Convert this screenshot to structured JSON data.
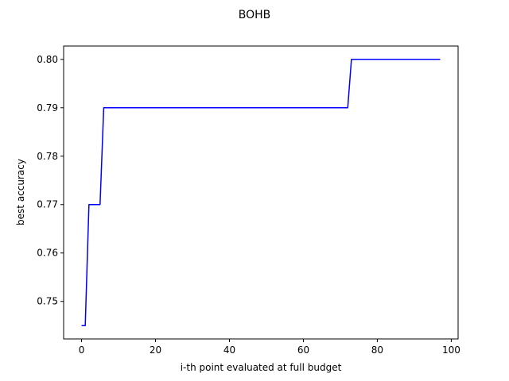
{
  "chart_data": {
    "type": "line",
    "title": "BOHB",
    "xlabel": "i-th point evaluated at full budget",
    "ylabel": "best accuracy",
    "xlim": [
      -4.85,
      101.85
    ],
    "ylim": [
      0.74225,
      0.80275
    ],
    "xticks": [
      0,
      20,
      40,
      60,
      80,
      100
    ],
    "xtick_labels": [
      "0",
      "20",
      "40",
      "60",
      "80",
      "100"
    ],
    "yticks": [
      0.75,
      0.76,
      0.77,
      0.78,
      0.79,
      0.8
    ],
    "ytick_labels": [
      "0.75",
      "0.76",
      "0.77",
      "0.78",
      "0.79",
      "0.80"
    ],
    "grid": false,
    "legend": "none",
    "series": [
      {
        "color": "#0000ff",
        "x": [
          0,
          1,
          2,
          5,
          6,
          72,
          73,
          97
        ],
        "y": [
          0.745,
          0.745,
          0.77,
          0.77,
          0.79,
          0.79,
          0.8,
          0.8
        ]
      }
    ]
  }
}
